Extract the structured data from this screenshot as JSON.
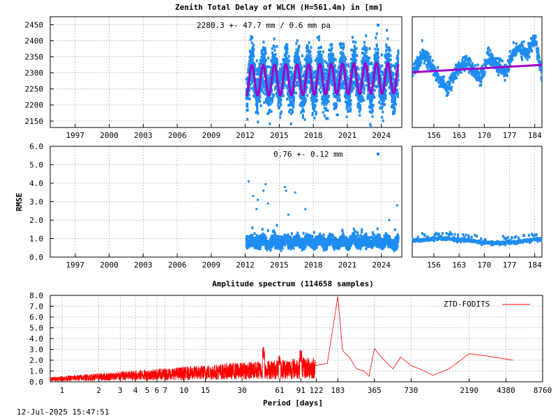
{
  "chart_data": [
    {
      "id": "ztd-long",
      "type": "scatter",
      "title": "Zenith Total Delay of WLCH (H=561.4m) in [mm]",
      "annotation": "2280.3 +-  47.7 mm /  0.6 mm pa",
      "xlim": [
        1994.8,
        2025.8
      ],
      "ylim": [
        2130,
        2475
      ],
      "xticks": [
        "1997",
        "2000",
        "2003",
        "2006",
        "2009",
        "2012",
        "2015",
        "2018",
        "2021",
        "2024"
      ],
      "yticks": [
        "2150",
        "2200",
        "2250",
        "2300",
        "2350",
        "2400",
        "2450"
      ],
      "data_start": 2012.1,
      "data_end": 2025.5,
      "mean": 2280.3,
      "annual_amplitude": 47.7,
      "trend_mm_per_year": 0.6,
      "noise_range": [
        2140,
        2440
      ],
      "colors": {
        "points": "#1e8cf0",
        "fit": "#a000c8"
      }
    },
    {
      "id": "ztd-recent",
      "type": "scatter",
      "xlim": [
        150,
        186
      ],
      "ylim": [
        2130,
        2475
      ],
      "xticks": [
        "156",
        "163",
        "170",
        "177",
        "184"
      ],
      "fit_range": [
        2302,
        2325
      ],
      "values_range": [
        2250,
        2430
      ]
    },
    {
      "id": "rmse-long",
      "type": "scatter",
      "ylabel": "RMSE",
      "annotation": "0.76 +-  0.12 mm",
      "xlim": [
        1994.8,
        2025.8
      ],
      "ylim": [
        0,
        6
      ],
      "xticks": [
        "1997",
        "2000",
        "2003",
        "2006",
        "2009",
        "2012",
        "2015",
        "2018",
        "2021",
        "2024"
      ],
      "yticks": [
        "0.0",
        "1.0",
        "2.0",
        "3.0",
        "4.0",
        "5.0",
        "6.0"
      ],
      "mean": 0.76,
      "std": 0.12,
      "outliers": [
        [
          2012.3,
          4.1
        ],
        [
          2012.7,
          3.3
        ],
        [
          2013.0,
          2.6
        ],
        [
          2013.6,
          3.6
        ],
        [
          2014.0,
          2.9
        ],
        [
          2013.8,
          3.95
        ],
        [
          2015.5,
          3.8
        ],
        [
          2015.6,
          3.6
        ],
        [
          2016.4,
          3.5
        ],
        [
          2015.8,
          2.3
        ],
        [
          2017.3,
          2.6
        ],
        [
          2025.4,
          2.8
        ],
        [
          2024.7,
          2.0
        ],
        [
          2013.1,
          3.1
        ]
      ],
      "colors": {
        "points": "#1e8cf0"
      }
    },
    {
      "id": "rmse-recent",
      "type": "scatter",
      "xlim": [
        150,
        186
      ],
      "ylim": [
        0,
        6
      ],
      "xticks": [
        "156",
        "163",
        "170",
        "177",
        "184"
      ],
      "values_range": [
        0.75,
        1.3
      ]
    },
    {
      "id": "spectrum",
      "type": "line",
      "title": "Amplitude spectrum (114658 samples)",
      "xlabel": "Period [days]",
      "legend": "ZTD-FODITS",
      "legend_position": "top-right",
      "xscale": "log",
      "xlim": [
        0.8,
        8760
      ],
      "ylim": [
        0,
        8
      ],
      "xticks": [
        "1",
        "2",
        "3",
        "4",
        "5",
        "6",
        "7",
        "10",
        "15",
        "30",
        "61",
        "91",
        "122",
        "183",
        "365",
        "730",
        "2190",
        "4380",
        "8760"
      ],
      "yticks": [
        "0.0",
        "1.0",
        "2.0",
        "3.0",
        "4.0",
        "5.0",
        "6.0",
        "7.0",
        "8.0"
      ],
      "peaks": [
        [
          183,
          7.9
        ],
        [
          365,
          3.1
        ],
        [
          91,
          3.0
        ],
        [
          61,
          2.5
        ],
        [
          45,
          3.3
        ],
        [
          122,
          2.4
        ]
      ],
      "tail": [
        [
          120,
          1.5
        ],
        [
          150,
          1.7
        ],
        [
          183,
          7.9
        ],
        [
          200,
          2.9
        ],
        [
          230,
          2.2
        ],
        [
          260,
          1.2
        ],
        [
          300,
          1.0
        ],
        [
          330,
          0.5
        ],
        [
          365,
          3.1
        ],
        [
          400,
          2.5
        ],
        [
          450,
          1.9
        ],
        [
          520,
          1.2
        ],
        [
          600,
          2.3
        ],
        [
          730,
          1.5
        ],
        [
          900,
          1.1
        ],
        [
          1100,
          0.6
        ],
        [
          1500,
          1.2
        ],
        [
          2190,
          2.6
        ],
        [
          3000,
          2.4
        ],
        [
          4380,
          2.1
        ],
        [
          5000,
          2.0
        ]
      ],
      "colors": {
        "line": "#ff0000"
      }
    }
  ],
  "footer": {
    "timestamp": "12-Jul-2025 15:47:51"
  }
}
